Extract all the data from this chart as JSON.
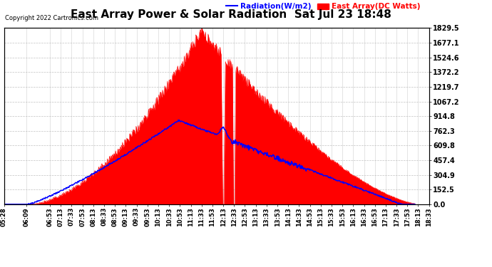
{
  "title": "East Array Power & Solar Radiation  Sat Jul 23 18:48",
  "copyright": "Copyright 2022 Cartronics.com",
  "legend_radiation": "Radiation(W/m2)",
  "legend_east_array": "East Array(DC Watts)",
  "legend_radiation_color": "blue",
  "legend_east_array_color": "red",
  "background_color": "#ffffff",
  "plot_bg_color": "#ffffff",
  "grid_color": "#aaaaaa",
  "title_fontsize": 11,
  "right_yaxis_ticks": [
    0.0,
    152.5,
    304.9,
    457.4,
    609.8,
    762.3,
    914.8,
    1067.2,
    1219.7,
    1372.2,
    1524.6,
    1677.1,
    1829.5
  ],
  "ymax": 1829.5,
  "ymin": 0.0,
  "x_tick_labels": [
    "05:28",
    "06:09",
    "06:53",
    "07:13",
    "07:33",
    "07:53",
    "08:13",
    "08:33",
    "08:53",
    "09:13",
    "09:33",
    "09:53",
    "10:13",
    "10:33",
    "10:53",
    "11:13",
    "11:33",
    "11:53",
    "12:13",
    "12:33",
    "12:53",
    "13:13",
    "13:33",
    "13:53",
    "14:13",
    "14:33",
    "14:53",
    "15:13",
    "15:33",
    "15:53",
    "16:13",
    "16:33",
    "16:53",
    "17:13",
    "17:33",
    "17:53",
    "18:13",
    "18:33"
  ],
  "fill_color": "red",
  "fill_alpha": 1.0,
  "line_color_radiation": "blue",
  "line_color_east": "red"
}
